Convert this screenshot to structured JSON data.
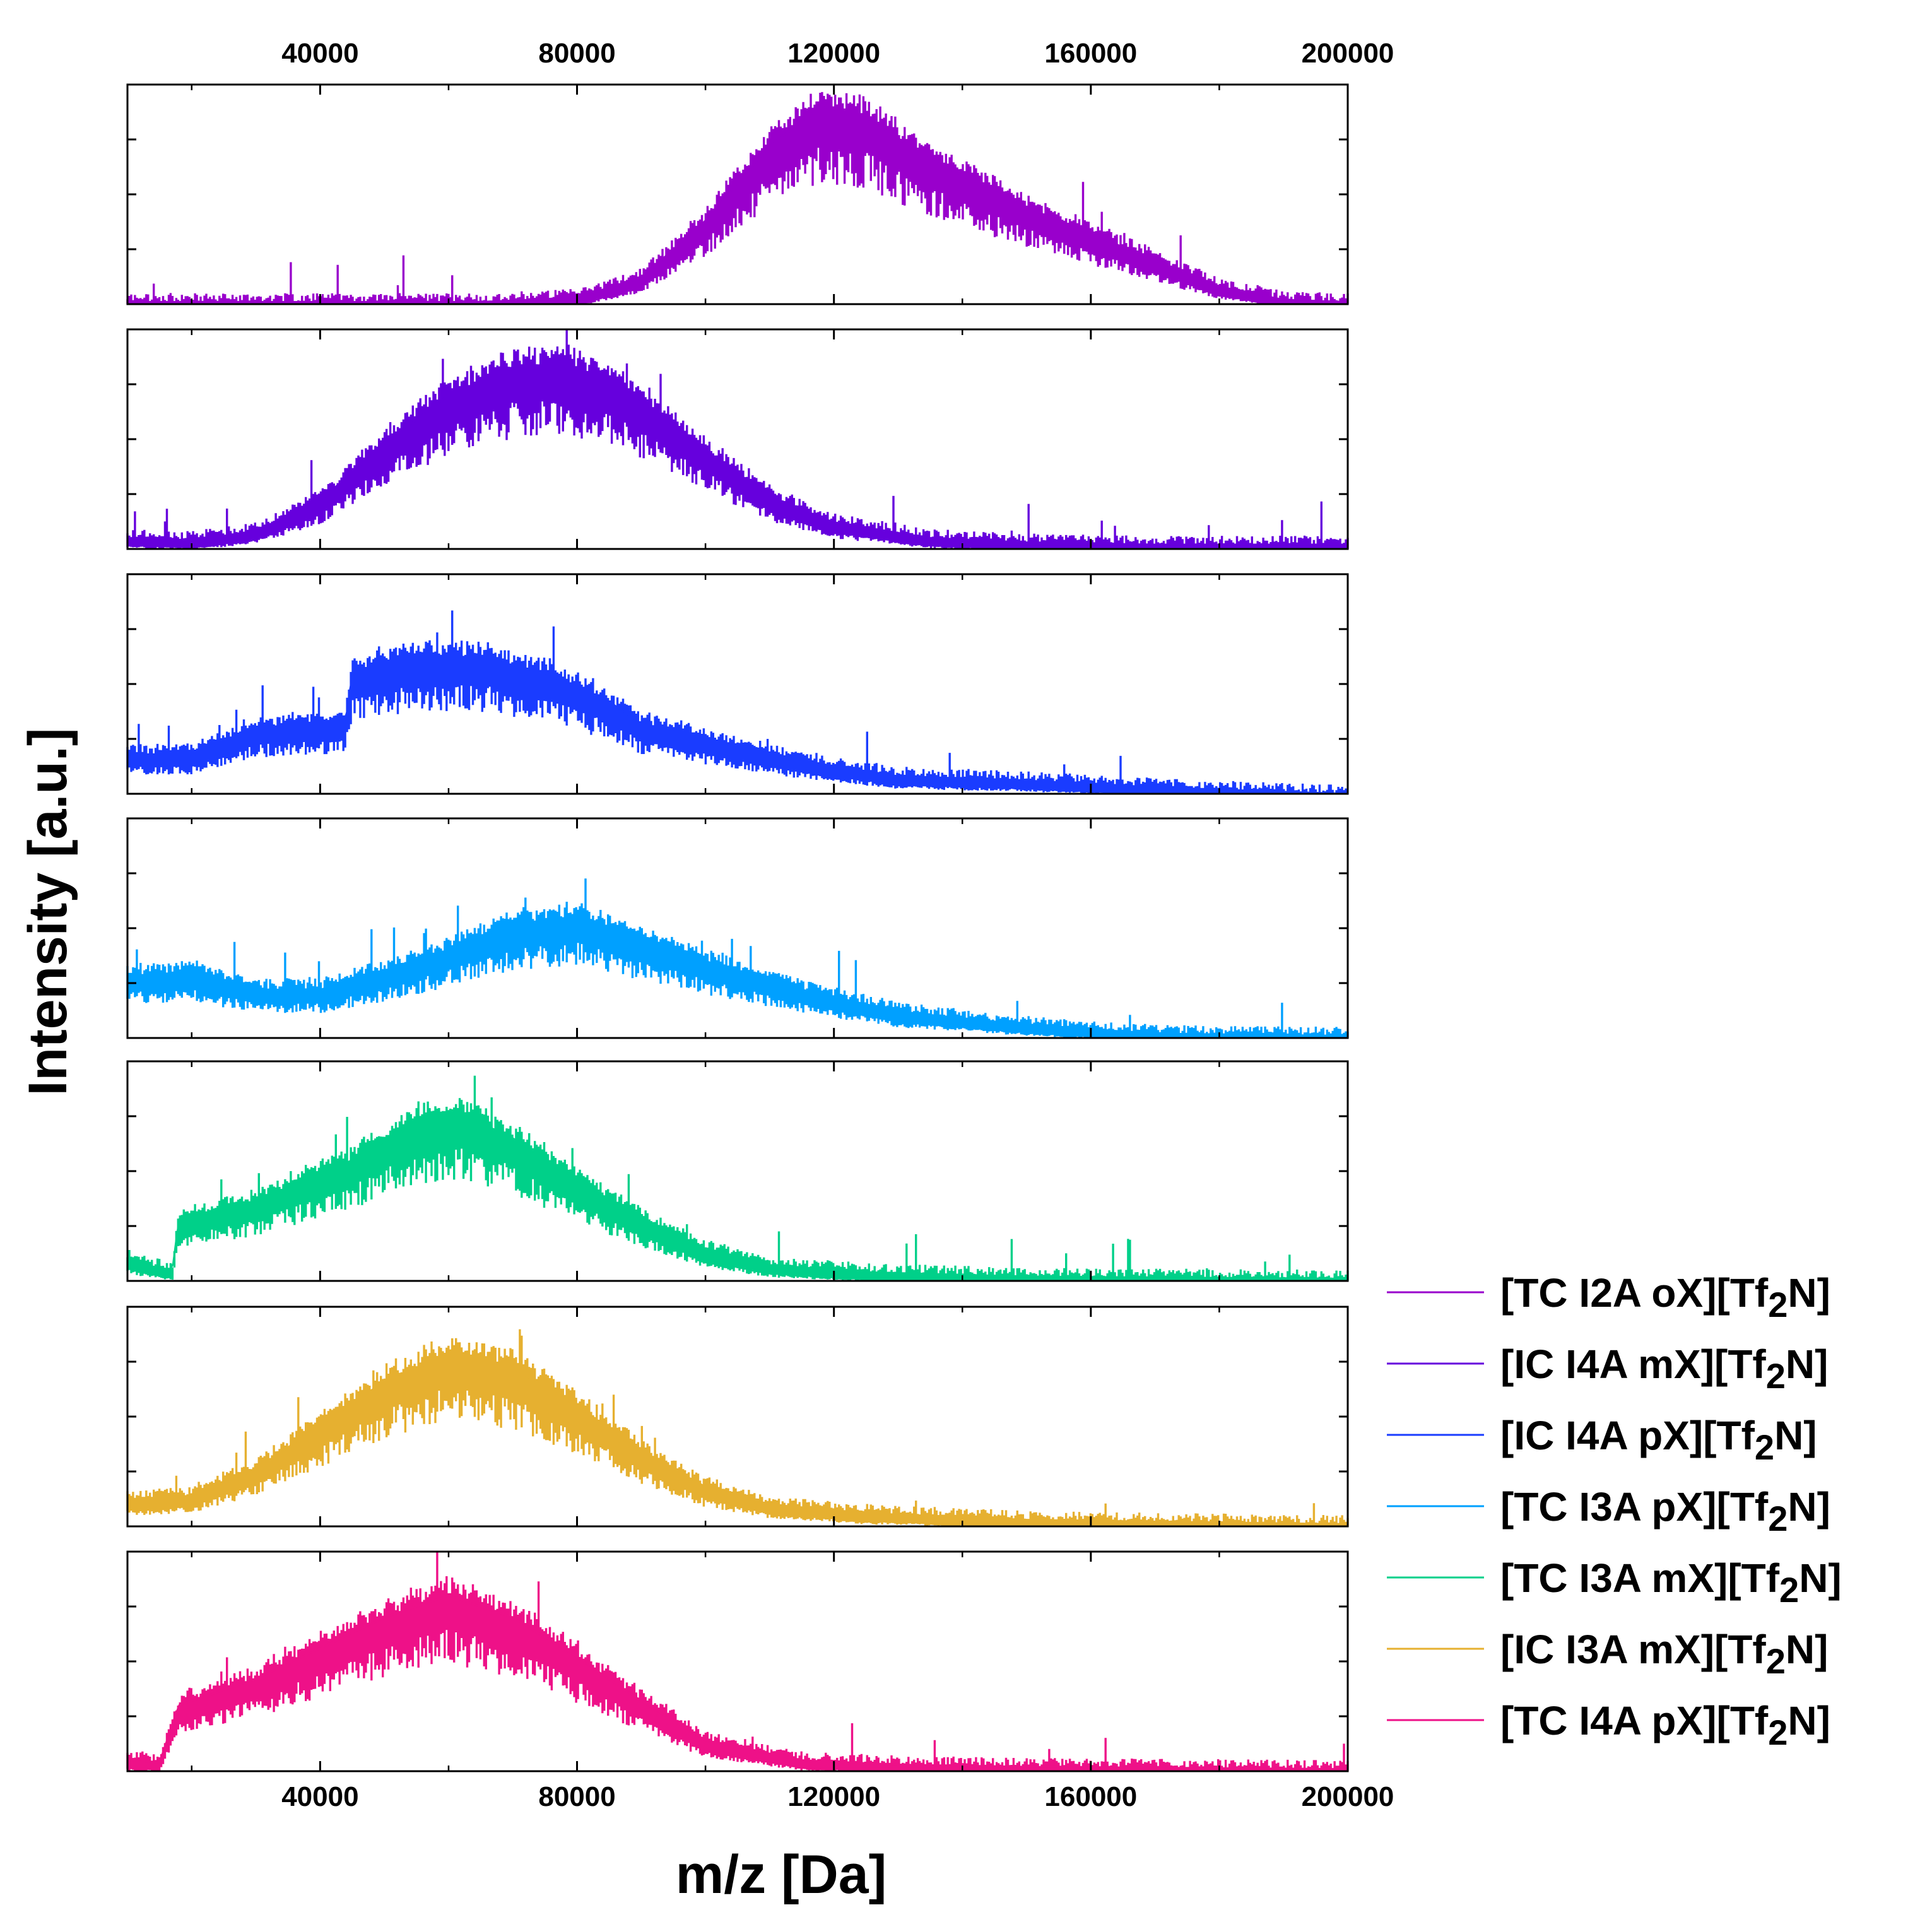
{
  "chart_data": {
    "type": "line",
    "xlabel": "m/z [Da]",
    "ylabel": "Intensity [a.u.]",
    "xlim": [
      10000,
      200000
    ],
    "xticks": [
      40000,
      80000,
      120000,
      160000,
      200000
    ],
    "tick_labels": [
      "40000",
      "80000",
      "120000",
      "160000",
      "200000"
    ],
    "grid": false,
    "legend_position": "bottom-right",
    "series": [
      {
        "legend_prefix": "[TC I2A oX][Tf",
        "legend_sub": "2",
        "legend_suffix": "N]",
        "color": "#9900cc",
        "x": [
          10000,
          40000,
          65000,
          80000,
          90000,
          100000,
          110000,
          118000,
          125000,
          135000,
          150000,
          165000,
          180000,
          190000,
          200000
        ],
        "y": [
          0.01,
          0.01,
          0.01,
          0.03,
          0.12,
          0.38,
          0.72,
          0.9,
          0.85,
          0.66,
          0.44,
          0.26,
          0.08,
          0.02,
          0.01
        ]
      },
      {
        "legend_prefix": "[IC I4A mX][Tf",
        "legend_sub": "2",
        "legend_suffix": "N]",
        "color": "#6600dd",
        "x": [
          10000,
          20000,
          30000,
          40000,
          50000,
          60000,
          70000,
          78000,
          88000,
          100000,
          110000,
          120000,
          135000,
          150000,
          170000,
          200000
        ],
        "y": [
          0.05,
          0.04,
          0.08,
          0.22,
          0.48,
          0.7,
          0.82,
          0.84,
          0.72,
          0.45,
          0.24,
          0.12,
          0.05,
          0.03,
          0.02,
          0.02
        ]
      },
      {
        "legend_prefix": "[IC I4A pX][Tf",
        "legend_sub": "2",
        "legend_suffix": "N]",
        "color": "#1a3cff",
        "x": [
          10000,
          20000,
          30000,
          44000,
          45000,
          55000,
          65000,
          75000,
          85000,
          90000,
          100000,
          115000,
          130000,
          150000,
          170000,
          189000,
          200000
        ],
        "y": [
          0.18,
          0.18,
          0.3,
          0.33,
          0.55,
          0.62,
          0.62,
          0.55,
          0.42,
          0.32,
          0.25,
          0.15,
          0.08,
          0.06,
          0.03,
          0.01,
          0.0
        ]
      },
      {
        "legend_prefix": "[TC I3A pX][Tf",
        "legend_sub": "2",
        "legend_suffix": "N]",
        "color": "#00a0ff",
        "x": [
          10000,
          20000,
          30000,
          40000,
          50000,
          60000,
          70000,
          80000,
          90000,
          100000,
          115000,
          130000,
          150000,
          170000,
          200000
        ],
        "y": [
          0.28,
          0.3,
          0.22,
          0.22,
          0.3,
          0.4,
          0.52,
          0.55,
          0.45,
          0.35,
          0.22,
          0.12,
          0.06,
          0.02,
          0.01
        ]
      },
      {
        "legend_prefix": "[TC I3A mX][Tf",
        "legend_sub": "2",
        "legend_suffix": "N]",
        "color": "#00d089",
        "x": [
          10000,
          13000,
          17000,
          18000,
          30000,
          45000,
          55000,
          62000,
          70000,
          80000,
          90000,
          100000,
          110000,
          125000,
          150000,
          200000
        ],
        "y": [
          0.1,
          0.07,
          0.05,
          0.28,
          0.36,
          0.55,
          0.72,
          0.76,
          0.65,
          0.46,
          0.28,
          0.14,
          0.07,
          0.04,
          0.02,
          0.01
        ]
      },
      {
        "legend_prefix": "[IC I3A mX][Tf",
        "legend_sub": "2",
        "legend_suffix": "N]",
        "color": "#e6b030",
        "x": [
          10000,
          20000,
          30000,
          40000,
          50000,
          60000,
          70000,
          80000,
          90000,
          100000,
          110000,
          125000,
          150000,
          200000
        ],
        "y": [
          0.12,
          0.14,
          0.26,
          0.46,
          0.66,
          0.78,
          0.72,
          0.55,
          0.34,
          0.18,
          0.1,
          0.06,
          0.03,
          0.01
        ]
      },
      {
        "legend_prefix": "[TC I4A pX][Tf",
        "legend_sub": "2",
        "legend_suffix": "N]",
        "color": "#ee1188",
        "x": [
          10000,
          15000,
          18000,
          30000,
          40000,
          50000,
          60000,
          70000,
          80000,
          90000,
          100000,
          115000,
          130000,
          150000,
          200000
        ],
        "y": [
          0.05,
          0.04,
          0.3,
          0.42,
          0.56,
          0.7,
          0.8,
          0.7,
          0.52,
          0.32,
          0.14,
          0.05,
          0.03,
          0.02,
          0.01
        ]
      }
    ]
  }
}
